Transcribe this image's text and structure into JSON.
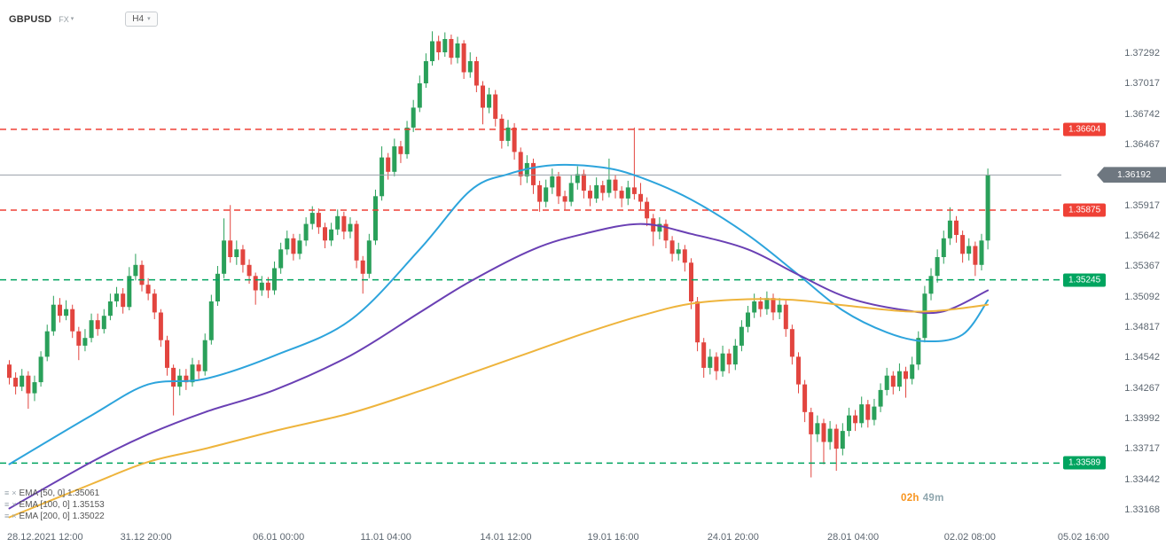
{
  "header": {
    "symbol": "GBPUSD",
    "market": "FX",
    "timeframe": "H4"
  },
  "countdown": {
    "hours": "02h",
    "minutes": "49m"
  },
  "price_tag": {
    "value": "1.36192"
  },
  "axis": {
    "price_labels": [
      "1.37292",
      "1.37017",
      "1.36742",
      "1.36467",
      "1.36192",
      "1.35917",
      "1.35642",
      "1.35367",
      "1.35092",
      "1.34817",
      "1.34542",
      "1.34267",
      "1.33992",
      "1.33717",
      "1.33442",
      "1.33168"
    ],
    "time_labels": [
      {
        "text": "28.12.2021 12:00",
        "i": 0,
        "align": "left"
      },
      {
        "text": "31.12 20:00",
        "i": 22
      },
      {
        "text": "06.01 00:00",
        "i": 43
      },
      {
        "text": "11.01 04:00",
        "i": 60
      },
      {
        "text": "14.01 12:00",
        "i": 79
      },
      {
        "text": "19.01 16:00",
        "i": 96
      },
      {
        "text": "24.01 20:00",
        "i": 115
      },
      {
        "text": "28.01 04:00",
        "i": 134
      },
      {
        "text": "02.02 08:00",
        "i": 152.5
      },
      {
        "text": "05.02 16:00",
        "i": 170.5
      }
    ]
  },
  "levels": [
    {
      "text": "1.36604",
      "price": 1.36604,
      "color": "#ef4136",
      "type": "resistance"
    },
    {
      "text": "1.35875",
      "price": 1.35875,
      "color": "#ef4136",
      "type": "resistance"
    },
    {
      "text": "1.35245",
      "price": 1.35245,
      "color": "#00a45f",
      "type": "support"
    },
    {
      "text": "1.33589",
      "price": 1.33589,
      "color": "#00a45f",
      "type": "support"
    }
  ],
  "chart_data": {
    "type": "candlestick",
    "symbol": "GBPUSD",
    "timeframe": "H4",
    "current_price": 1.36192,
    "price_range": [
      1.33168,
      1.37292
    ],
    "up_color": "#2aa05a",
    "down_color": "#e2453f",
    "legend_position": "bottom-left",
    "candles_ohlc": [
      [
        1.3448,
        1.3452,
        1.343,
        1.3436
      ],
      [
        1.3436,
        1.3441,
        1.3421,
        1.3428
      ],
      [
        1.3428,
        1.3444,
        1.3424,
        1.3438
      ],
      [
        1.3438,
        1.3442,
        1.3408,
        1.3422
      ],
      [
        1.3422,
        1.3438,
        1.3415,
        1.3432
      ],
      [
        1.3432,
        1.346,
        1.3428,
        1.3455
      ],
      [
        1.3455,
        1.3484,
        1.3451,
        1.3478
      ],
      [
        1.3478,
        1.351,
        1.3474,
        1.3502
      ],
      [
        1.3502,
        1.3508,
        1.3486,
        1.3492
      ],
      [
        1.3492,
        1.3506,
        1.3488,
        1.3498
      ],
      [
        1.3498,
        1.3502,
        1.3472,
        1.3478
      ],
      [
        1.3478,
        1.3482,
        1.3452,
        1.3465
      ],
      [
        1.3465,
        1.348,
        1.346,
        1.3472
      ],
      [
        1.3472,
        1.3494,
        1.3468,
        1.3488
      ],
      [
        1.3488,
        1.3494,
        1.3474,
        1.348
      ],
      [
        1.348,
        1.3498,
        1.3476,
        1.3492
      ],
      [
        1.3492,
        1.3512,
        1.3488,
        1.3505
      ],
      [
        1.3505,
        1.3518,
        1.35,
        1.3512
      ],
      [
        1.3512,
        1.3517,
        1.3494,
        1.35
      ],
      [
        1.35,
        1.3536,
        1.3497,
        1.3528
      ],
      [
        1.3528,
        1.3548,
        1.3524,
        1.3538
      ],
      [
        1.3538,
        1.3542,
        1.3514,
        1.352
      ],
      [
        1.352,
        1.3526,
        1.3506,
        1.3512
      ],
      [
        1.3512,
        1.3516,
        1.3489,
        1.3495
      ],
      [
        1.3495,
        1.3498,
        1.3464,
        1.347
      ],
      [
        1.347,
        1.3474,
        1.3438,
        1.3445
      ],
      [
        1.3445,
        1.3448,
        1.3402,
        1.3428
      ],
      [
        1.3428,
        1.3444,
        1.342,
        1.3438
      ],
      [
        1.3438,
        1.3444,
        1.3425,
        1.3432
      ],
      [
        1.3432,
        1.3454,
        1.3428,
        1.3448
      ],
      [
        1.3448,
        1.3452,
        1.3435,
        1.3442
      ],
      [
        1.3442,
        1.3476,
        1.3438,
        1.347
      ],
      [
        1.347,
        1.3511,
        1.3466,
        1.3505
      ],
      [
        1.3505,
        1.3537,
        1.3501,
        1.353
      ],
      [
        1.353,
        1.358,
        1.3526,
        1.356
      ],
      [
        1.356,
        1.3592,
        1.354,
        1.3545
      ],
      [
        1.3545,
        1.356,
        1.3538,
        1.3552
      ],
      [
        1.3552,
        1.3556,
        1.3531,
        1.3538
      ],
      [
        1.3538,
        1.3543,
        1.3521,
        1.3528
      ],
      [
        1.3528,
        1.3531,
        1.3502,
        1.3515
      ],
      [
        1.3515,
        1.3528,
        1.351,
        1.3522
      ],
      [
        1.3522,
        1.3527,
        1.3508,
        1.3515
      ],
      [
        1.3515,
        1.3541,
        1.3511,
        1.3535
      ],
      [
        1.3535,
        1.3558,
        1.353,
        1.3552
      ],
      [
        1.3552,
        1.3569,
        1.3547,
        1.3562
      ],
      [
        1.3562,
        1.3566,
        1.3542,
        1.3548
      ],
      [
        1.3548,
        1.3566,
        1.3543,
        1.356
      ],
      [
        1.356,
        1.3581,
        1.3555,
        1.3575
      ],
      [
        1.3575,
        1.3591,
        1.357,
        1.3585
      ],
      [
        1.3585,
        1.3589,
        1.3566,
        1.3572
      ],
      [
        1.3572,
        1.3576,
        1.3553,
        1.356
      ],
      [
        1.356,
        1.3576,
        1.3555,
        1.357
      ],
      [
        1.357,
        1.3588,
        1.3565,
        1.3582
      ],
      [
        1.3582,
        1.3586,
        1.3561,
        1.3568
      ],
      [
        1.3568,
        1.3581,
        1.3562,
        1.3575
      ],
      [
        1.3575,
        1.3578,
        1.3535,
        1.3542
      ],
      [
        1.3542,
        1.3546,
        1.3512,
        1.353
      ],
      [
        1.353,
        1.3566,
        1.3526,
        1.356
      ],
      [
        1.356,
        1.3606,
        1.3556,
        1.36
      ],
      [
        1.36,
        1.3645,
        1.3596,
        1.3635
      ],
      [
        1.3635,
        1.3639,
        1.3615,
        1.3622
      ],
      [
        1.3622,
        1.3652,
        1.3618,
        1.3645
      ],
      [
        1.3645,
        1.365,
        1.363,
        1.3638
      ],
      [
        1.3638,
        1.3668,
        1.3634,
        1.3662
      ],
      [
        1.3662,
        1.3687,
        1.3658,
        1.368
      ],
      [
        1.368,
        1.3709,
        1.3676,
        1.3702
      ],
      [
        1.3702,
        1.3729,
        1.3698,
        1.3722
      ],
      [
        1.3722,
        1.3749,
        1.3718,
        1.374
      ],
      [
        1.374,
        1.3745,
        1.3723,
        1.373
      ],
      [
        1.373,
        1.3748,
        1.3726,
        1.3742
      ],
      [
        1.3742,
        1.3746,
        1.3719,
        1.3725
      ],
      [
        1.3725,
        1.3744,
        1.372,
        1.3738
      ],
      [
        1.3738,
        1.3741,
        1.3706,
        1.3712
      ],
      [
        1.3712,
        1.373,
        1.3707,
        1.3722
      ],
      [
        1.3722,
        1.3726,
        1.3694,
        1.37
      ],
      [
        1.37,
        1.3704,
        1.3665,
        1.368
      ],
      [
        1.368,
        1.3698,
        1.3675,
        1.3692
      ],
      [
        1.3692,
        1.3696,
        1.3663,
        1.367
      ],
      [
        1.367,
        1.3674,
        1.3643,
        1.365
      ],
      [
        1.365,
        1.3669,
        1.3645,
        1.3662
      ],
      [
        1.3662,
        1.3666,
        1.3633,
        1.364
      ],
      [
        1.364,
        1.3644,
        1.361,
        1.3618
      ],
      [
        1.3618,
        1.3637,
        1.3612,
        1.363
      ],
      [
        1.363,
        1.3634,
        1.3602,
        1.361
      ],
      [
        1.361,
        1.3614,
        1.3586,
        1.3595
      ],
      [
        1.3595,
        1.3615,
        1.359,
        1.3608
      ],
      [
        1.3608,
        1.3625,
        1.3602,
        1.3618
      ],
      [
        1.3618,
        1.3622,
        1.3593,
        1.36
      ],
      [
        1.36,
        1.3605,
        1.3588,
        1.3595
      ],
      [
        1.3595,
        1.3619,
        1.3591,
        1.3612
      ],
      [
        1.3612,
        1.3627,
        1.3606,
        1.362
      ],
      [
        1.362,
        1.3624,
        1.3598,
        1.3605
      ],
      [
        1.3605,
        1.361,
        1.3591,
        1.3598
      ],
      [
        1.3598,
        1.3617,
        1.3594,
        1.361
      ],
      [
        1.361,
        1.3614,
        1.3596,
        1.3603
      ],
      [
        1.3603,
        1.3634,
        1.3599,
        1.3615
      ],
      [
        1.3615,
        1.3619,
        1.3598,
        1.3605
      ],
      [
        1.3605,
        1.3609,
        1.359,
        1.3598
      ],
      [
        1.3598,
        1.3614,
        1.3592,
        1.3608
      ],
      [
        1.3608,
        1.3662,
        1.3597,
        1.3602
      ],
      [
        1.3602,
        1.3612,
        1.3588,
        1.3595
      ],
      [
        1.3595,
        1.3599,
        1.3573,
        1.358
      ],
      [
        1.358,
        1.3584,
        1.3555,
        1.3568
      ],
      [
        1.3568,
        1.3581,
        1.3561,
        1.3575
      ],
      [
        1.3575,
        1.3579,
        1.3553,
        1.356
      ],
      [
        1.356,
        1.3564,
        1.3541,
        1.3548
      ],
      [
        1.3548,
        1.3558,
        1.3542,
        1.3552
      ],
      [
        1.3552,
        1.3556,
        1.3532,
        1.354
      ],
      [
        1.354,
        1.3544,
        1.3498,
        1.3505
      ],
      [
        1.3505,
        1.3509,
        1.346,
        1.3468
      ],
      [
        1.3468,
        1.3472,
        1.3436,
        1.3445
      ],
      [
        1.3445,
        1.3462,
        1.3439,
        1.3455
      ],
      [
        1.3455,
        1.3459,
        1.3434,
        1.3442
      ],
      [
        1.3442,
        1.3465,
        1.3437,
        1.3458
      ],
      [
        1.3458,
        1.3462,
        1.344,
        1.3448
      ],
      [
        1.3448,
        1.3471,
        1.3443,
        1.3465
      ],
      [
        1.3465,
        1.3488,
        1.346,
        1.3482
      ],
      [
        1.3482,
        1.3501,
        1.3477,
        1.3495
      ],
      [
        1.3495,
        1.3512,
        1.349,
        1.3505
      ],
      [
        1.3505,
        1.3509,
        1.3491,
        1.3498
      ],
      [
        1.3498,
        1.3514,
        1.3493,
        1.3508
      ],
      [
        1.3508,
        1.3512,
        1.3488,
        1.3495
      ],
      [
        1.3495,
        1.3508,
        1.3489,
        1.3502
      ],
      [
        1.3502,
        1.3506,
        1.3473,
        1.348
      ],
      [
        1.348,
        1.3484,
        1.3448,
        1.3455
      ],
      [
        1.3455,
        1.3459,
        1.3422,
        1.343
      ],
      [
        1.343,
        1.3434,
        1.3396,
        1.3405
      ],
      [
        1.3405,
        1.3409,
        1.3346,
        1.3385
      ],
      [
        1.3385,
        1.3402,
        1.3378,
        1.3395
      ],
      [
        1.3395,
        1.3399,
        1.3358,
        1.3378
      ],
      [
        1.3378,
        1.3397,
        1.3371,
        1.339
      ],
      [
        1.339,
        1.3394,
        1.3352,
        1.3372
      ],
      [
        1.3372,
        1.3395,
        1.3366,
        1.3388
      ],
      [
        1.3388,
        1.3409,
        1.3383,
        1.3402
      ],
      [
        1.3402,
        1.3407,
        1.3388,
        1.3395
      ],
      [
        1.3395,
        1.3419,
        1.3391,
        1.3412
      ],
      [
        1.3412,
        1.3416,
        1.3391,
        1.3398
      ],
      [
        1.3398,
        1.3417,
        1.3393,
        1.341
      ],
      [
        1.341,
        1.3431,
        1.3405,
        1.3425
      ],
      [
        1.3425,
        1.3445,
        1.342,
        1.3438
      ],
      [
        1.3438,
        1.3442,
        1.3421,
        1.3428
      ],
      [
        1.3428,
        1.3449,
        1.3424,
        1.3442
      ],
      [
        1.3442,
        1.3446,
        1.3418,
        1.3435
      ],
      [
        1.3435,
        1.3455,
        1.343,
        1.3448
      ],
      [
        1.3448,
        1.3478,
        1.3443,
        1.3472
      ],
      [
        1.3472,
        1.3519,
        1.3468,
        1.3512
      ],
      [
        1.3512,
        1.3535,
        1.3506,
        1.3528
      ],
      [
        1.3528,
        1.3552,
        1.3522,
        1.3545
      ],
      [
        1.3545,
        1.3569,
        1.3539,
        1.3562
      ],
      [
        1.3562,
        1.359,
        1.3556,
        1.3578
      ],
      [
        1.3578,
        1.3582,
        1.3558,
        1.3565
      ],
      [
        1.3565,
        1.3569,
        1.354,
        1.3548
      ],
      [
        1.3548,
        1.3562,
        1.3542,
        1.3555
      ],
      [
        1.3555,
        1.3559,
        1.3528,
        1.3538
      ],
      [
        1.3538,
        1.3566,
        1.3533,
        1.356
      ],
      [
        1.356,
        1.3625,
        1.3552,
        1.36192
      ]
    ],
    "ema_lines": [
      {
        "id": "ema50",
        "name": "EMA 50",
        "legend": "EMA [50, 0] 1.35061",
        "value": 1.35061,
        "color": "#2da4dc",
        "points": [
          [
            0,
            1.3358
          ],
          [
            13,
            1.3402
          ],
          [
            22,
            1.343
          ],
          [
            31,
            1.3435
          ],
          [
            42,
            1.3456
          ],
          [
            54,
            1.3488
          ],
          [
            65,
            1.3552
          ],
          [
            73,
            1.3605
          ],
          [
            79,
            1.362
          ],
          [
            86,
            1.3628
          ],
          [
            94,
            1.3626
          ],
          [
            100,
            1.3617
          ],
          [
            108,
            1.3597
          ],
          [
            117,
            1.3565
          ],
          [
            125,
            1.3529
          ],
          [
            132,
            1.3497
          ],
          [
            139,
            1.3477
          ],
          [
            145,
            1.3469
          ],
          [
            151,
            1.3475
          ],
          [
            155,
            1.3506
          ]
        ]
      },
      {
        "id": "ema100",
        "name": "EMA 100",
        "legend": "EMA [100, 0] 1.35153",
        "value": 1.35153,
        "color": "#6a40b4",
        "points": [
          [
            0,
            1.3318
          ],
          [
            13,
            1.336
          ],
          [
            22,
            1.3385
          ],
          [
            31,
            1.3405
          ],
          [
            42,
            1.3425
          ],
          [
            54,
            1.3456
          ],
          [
            65,
            1.3495
          ],
          [
            73,
            1.3523
          ],
          [
            83,
            1.3552
          ],
          [
            91,
            1.3566
          ],
          [
            100,
            1.3575
          ],
          [
            108,
            1.3566
          ],
          [
            117,
            1.3552
          ],
          [
            125,
            1.3529
          ],
          [
            133,
            1.3508
          ],
          [
            142,
            1.3497
          ],
          [
            148,
            1.3496
          ],
          [
            155,
            1.3515
          ]
        ]
      },
      {
        "id": "ema200",
        "name": "EMA 200",
        "legend": "EMA [200, 0] 1.35022",
        "value": 1.35022,
        "color": "#eeb43c",
        "points": [
          [
            0,
            1.331
          ],
          [
            13,
            1.334
          ],
          [
            22,
            1.336
          ],
          [
            31,
            1.3372
          ],
          [
            42,
            1.3388
          ],
          [
            54,
            1.3404
          ],
          [
            65,
            1.3424
          ],
          [
            73,
            1.344
          ],
          [
            83,
            1.346
          ],
          [
            91,
            1.3476
          ],
          [
            100,
            1.3492
          ],
          [
            108,
            1.3503
          ],
          [
            117,
            1.3507
          ],
          [
            125,
            1.3506
          ],
          [
            133,
            1.3501
          ],
          [
            142,
            1.3496
          ],
          [
            148,
            1.3497
          ],
          [
            155,
            1.3502
          ]
        ]
      }
    ]
  }
}
